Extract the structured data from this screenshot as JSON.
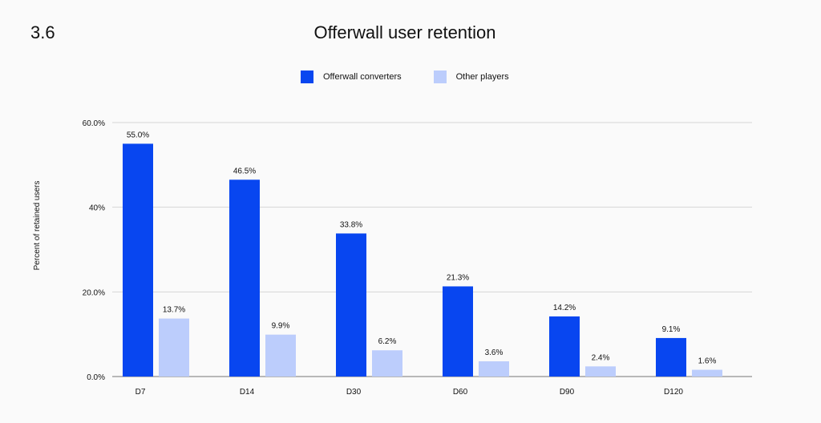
{
  "page": {
    "section_number": "3.6"
  },
  "chart_data": {
    "type": "bar",
    "title": "Offerwall user retention",
    "xlabel": "",
    "ylabel": "Percent of retained users",
    "categories": [
      "D7",
      "D14",
      "D30",
      "D60",
      "D90",
      "D120"
    ],
    "series": [
      {
        "name": "Offerwall converters",
        "color": "#0846f0",
        "values": [
          55.0,
          46.5,
          33.8,
          21.3,
          14.2,
          9.1
        ],
        "labels": [
          "55.0%",
          "46.5%",
          "33.8%",
          "21.3%",
          "14.2%",
          "9.1%"
        ]
      },
      {
        "name": "Other players",
        "color": "#bccdfc",
        "values": [
          13.7,
          9.9,
          6.2,
          3.6,
          2.4,
          1.6
        ],
        "labels": [
          "13.7%",
          "9.9%",
          "6.2%",
          "3.6%",
          "2.4%",
          "1.6%"
        ]
      }
    ],
    "ylim": [
      0,
      60
    ],
    "yticks": [
      0,
      20,
      40,
      60
    ],
    "ytick_labels": [
      "0.0%",
      "20.0%",
      "40%",
      "60.0%"
    ],
    "grid": true,
    "legend_position": "top-center"
  }
}
